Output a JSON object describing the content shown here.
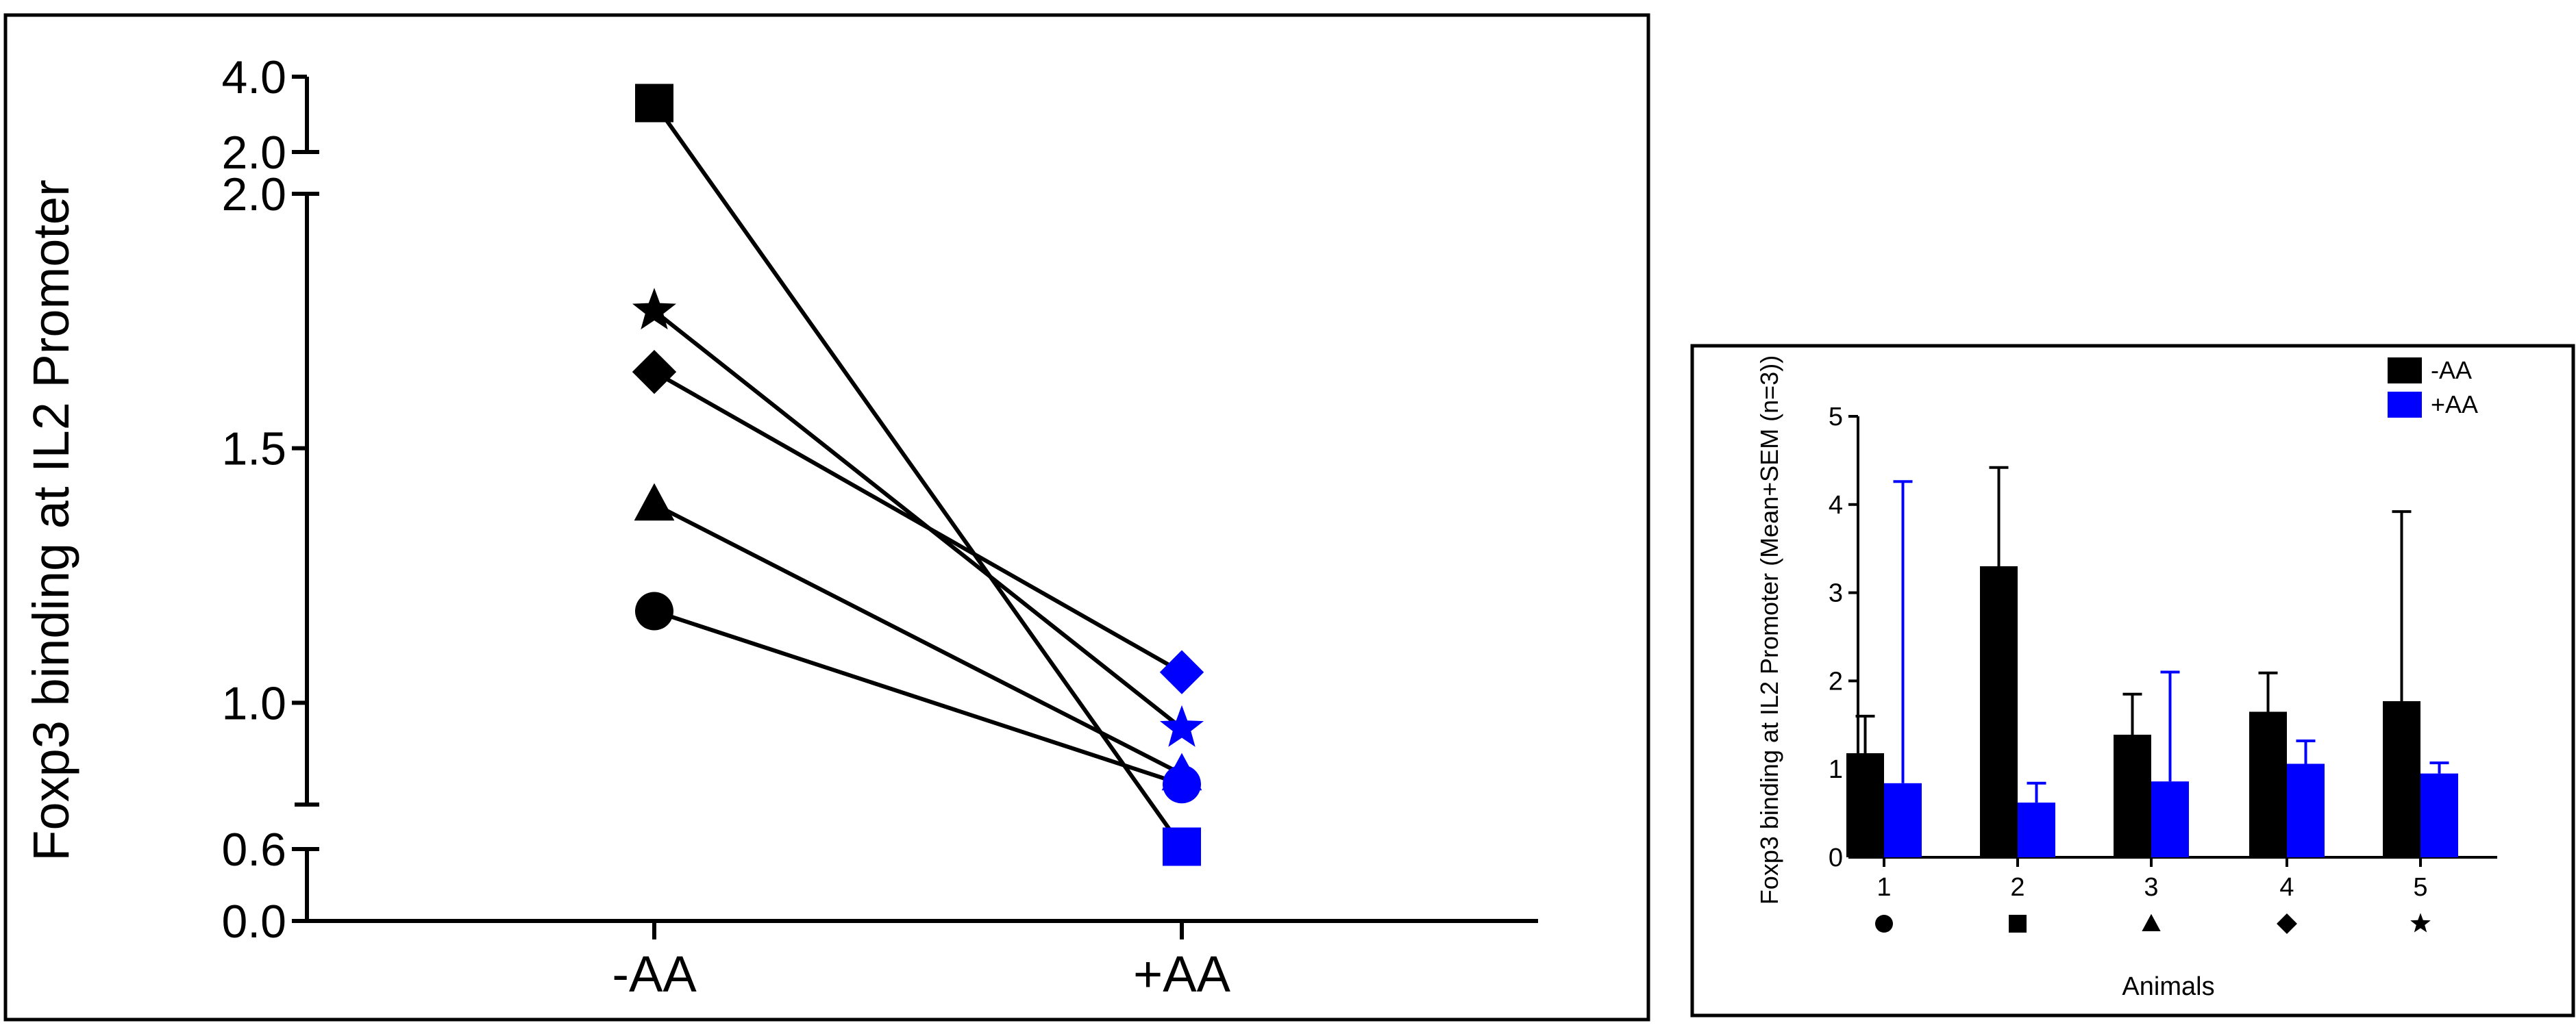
{
  "chart_data": [
    {
      "type": "line",
      "title": "",
      "ylabel": "Foxp3 binding at IL2 Promoter",
      "xlabel": "",
      "categories": [
        "-AA",
        "+AA"
      ],
      "y_axis_segments": [
        {
          "range": [
            0.0,
            0.6
          ],
          "ticks": [
            "0.6",
            "0.0"
          ]
        },
        {
          "range": [
            0.8,
            2.0
          ],
          "ticks": [
            "2.0",
            "1.5",
            "1.0"
          ]
        },
        {
          "range": [
            2.0,
            4.0
          ],
          "ticks": [
            "4.0",
            "2.0"
          ]
        }
      ],
      "series": [
        {
          "marker": "circle",
          "values": [
            1.18,
            0.84
          ],
          "colors": [
            "#000000",
            "#0000ff"
          ]
        },
        {
          "marker": "square",
          "values": [
            3.3,
            0.62
          ],
          "colors": [
            "#000000",
            "#0000ff"
          ]
        },
        {
          "marker": "triangle",
          "values": [
            1.39,
            0.86
          ],
          "colors": [
            "#000000",
            "#0000ff"
          ]
        },
        {
          "marker": "diamond",
          "values": [
            1.65,
            1.06
          ],
          "colors": [
            "#000000",
            "#0000ff"
          ]
        },
        {
          "marker": "star",
          "values": [
            1.77,
            0.95
          ],
          "colors": [
            "#000000",
            "#0000ff"
          ]
        }
      ]
    },
    {
      "type": "bar",
      "title": "",
      "ylabel": "Foxp3 binding at IL2 Promoter (Mean+SEM (n=3))",
      "xlabel": "Animals",
      "categories": [
        "1",
        "2",
        "3",
        "4",
        "5"
      ],
      "category_markers": [
        "circle",
        "square",
        "triangle",
        "diamond",
        "star"
      ],
      "ylim": [
        0,
        5
      ],
      "yticks": [
        "0",
        "1",
        "2",
        "3",
        "4",
        "5"
      ],
      "legend_position": "top-right",
      "series": [
        {
          "name": "-AA",
          "color": "#000000",
          "values": [
            1.18,
            3.3,
            1.39,
            1.65,
            1.77
          ],
          "sem": [
            0.42,
            1.12,
            0.46,
            0.44,
            2.15
          ]
        },
        {
          "name": "+AA",
          "color": "#0000ff",
          "values": [
            0.84,
            0.62,
            0.86,
            1.06,
            0.95
          ],
          "sem": [
            3.42,
            0.22,
            1.24,
            0.26,
            0.12
          ]
        }
      ]
    }
  ]
}
